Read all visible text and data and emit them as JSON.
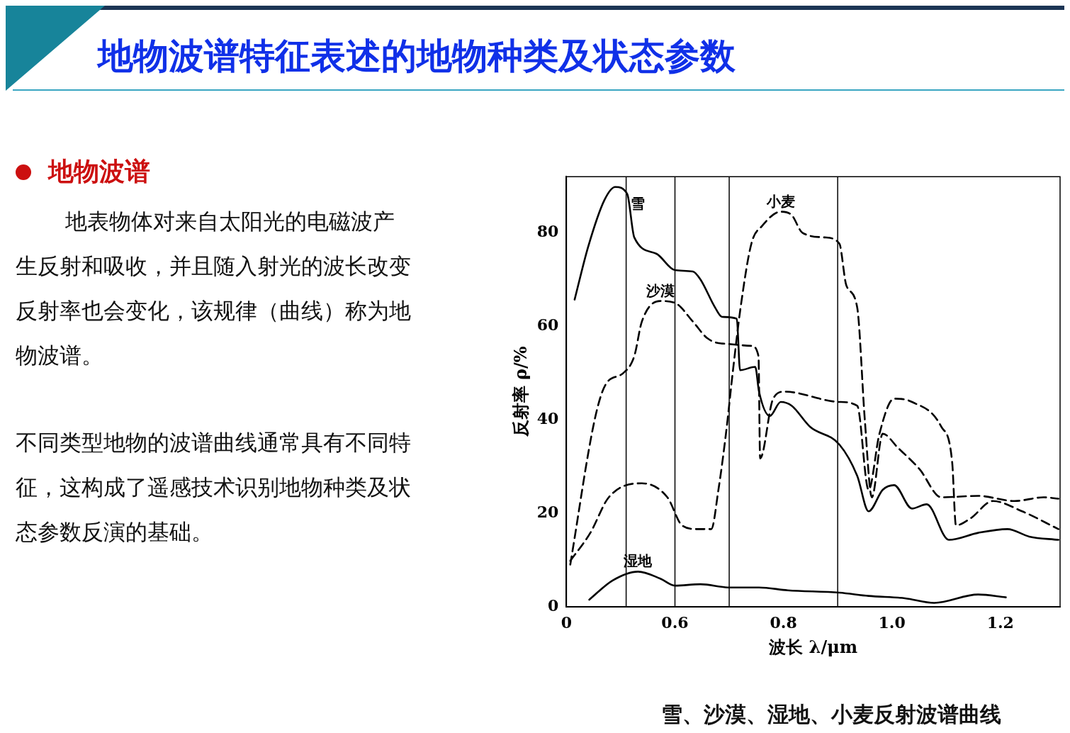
{
  "chart_data": {
    "type": "line",
    "title": "地物波谱特征表述的地物种类及状态参数",
    "xlabel": "波长 λ/μm",
    "ylabel": "反射率 ρ/%",
    "xlim": [
      0.4,
      1.31
    ],
    "xticks": [
      {
        "value": 0.4,
        "label": "0"
      },
      0.6,
      0.8,
      {
        "value": 1,
        "label": "1.0"
      },
      1.2
    ],
    "ylim": [
      0,
      92
    ],
    "yticks": [
      0,
      20,
      40,
      60,
      80
    ],
    "grid": false,
    "legend": false,
    "marker": "none",
    "ref_lines": [
      {
        "axis": "x",
        "value": 0.51,
        "color": "#000000"
      },
      {
        "axis": "x",
        "value": 0.6,
        "color": "#000000"
      },
      {
        "axis": "x",
        "value": 0.7,
        "color": "#000000"
      },
      {
        "axis": "x",
        "value": 0.9,
        "color": "#000000"
      }
    ],
    "series": [
      {
        "name": "雪",
        "color": "#000000",
        "line_style": "solid",
        "x": [
          0.415,
          0.44,
          0.47,
          0.49,
          0.512,
          0.525,
          0.566,
          0.6,
          0.633,
          0.647,
          0.674,
          0.687,
          0.714,
          0.72,
          0.748,
          0.755,
          0.775,
          0.795,
          0.815,
          0.849,
          0.903,
          0.936,
          0.957,
          0.983,
          1.004,
          1.037,
          1.064,
          1.105,
          1.159,
          1.213,
          1.253,
          1.307
        ],
        "values": [
          65.7,
          77,
          87,
          89.8,
          88.3,
          79,
          75.5,
          72,
          71.7,
          70,
          64,
          62,
          61.6,
          50.6,
          51.3,
          46,
          40.8,
          43.8,
          43,
          38.5,
          34.7,
          28,
          20.4,
          25,
          26,
          21,
          21.9,
          14.3,
          15.8,
          16.6,
          15,
          14.3
        ]
      },
      {
        "name": "沙漠",
        "color": "#000000",
        "line_style": "dashed",
        "x": [
          0.407,
          0.452,
          0.472,
          0.505,
          0.525,
          0.539,
          0.573,
          0.6,
          0.633,
          0.66,
          0.687,
          0.741,
          0.754,
          0.757,
          0.781,
          0.802,
          0.903,
          0.936,
          0.957,
          0.977,
          1.004,
          1.037,
          1.091,
          1.111,
          1.118,
          1.145,
          1.186,
          1.24,
          1.307
        ],
        "values": [
          9,
          40,
          47.5,
          50,
          53.6,
          61,
          65.4,
          65,
          61,
          57.4,
          56.3,
          55.8,
          53.6,
          31.7,
          44.5,
          46,
          43.8,
          43,
          25,
          37,
          44.5,
          43.8,
          38.5,
          31,
          17.4,
          18.9,
          22.6,
          20.4,
          16.6
        ]
      },
      {
        "name": "小麦",
        "color": "#000000",
        "line_style": "dashed",
        "x": [
          0.407,
          0.444,
          0.478,
          0.539,
          0.586,
          0.613,
          0.64,
          0.667,
          0.68,
          0.694,
          0.707,
          0.721,
          0.741,
          0.761,
          0.795,
          0.815,
          0.835,
          0.876,
          0.903,
          0.916,
          0.936,
          0.95,
          0.963,
          0.983,
          1.011,
          1.051,
          1.091,
          1.159,
          1.226,
          1.28,
          1.307
        ],
        "values": [
          9.8,
          15.8,
          23.4,
          26.4,
          23.4,
          17.4,
          16.6,
          16.6,
          24.9,
          37,
          50.6,
          64,
          77.7,
          81.5,
          84.5,
          83.8,
          80,
          79,
          77.7,
          68.7,
          64,
          40,
          23.4,
          37,
          34,
          29.4,
          23.4,
          23.7,
          22.6,
          23.4,
          23.1
        ]
      },
      {
        "name": "湿地",
        "color": "#000000",
        "line_style": "solid",
        "x": [
          0.442,
          0.485,
          0.532,
          0.573,
          0.6,
          0.647,
          0.701,
          0.755,
          0.808,
          0.903,
          0.957,
          1.024,
          1.078,
          1.159,
          1.21
        ],
        "values": [
          1.5,
          5.6,
          7.5,
          6,
          4.5,
          4.8,
          4.1,
          4.1,
          3.5,
          3,
          2.3,
          1.8,
          0.8,
          2.6,
          2
        ]
      }
    ],
    "annotations": [
      "地物波谱",
      "地表物体对来自太阳光的电磁波产生反射和吸收，并且随入射光的波长改变反射率也会变化，该规律（曲线）称为地物波谱。",
      "不同类型地物的波谱曲线通常具有不同特征，这构成了遥感技术识别地物种类及状态参数反演的基础。",
      "雪、沙漠、湿地、小麦反射波谱曲线"
    ]
  }
}
